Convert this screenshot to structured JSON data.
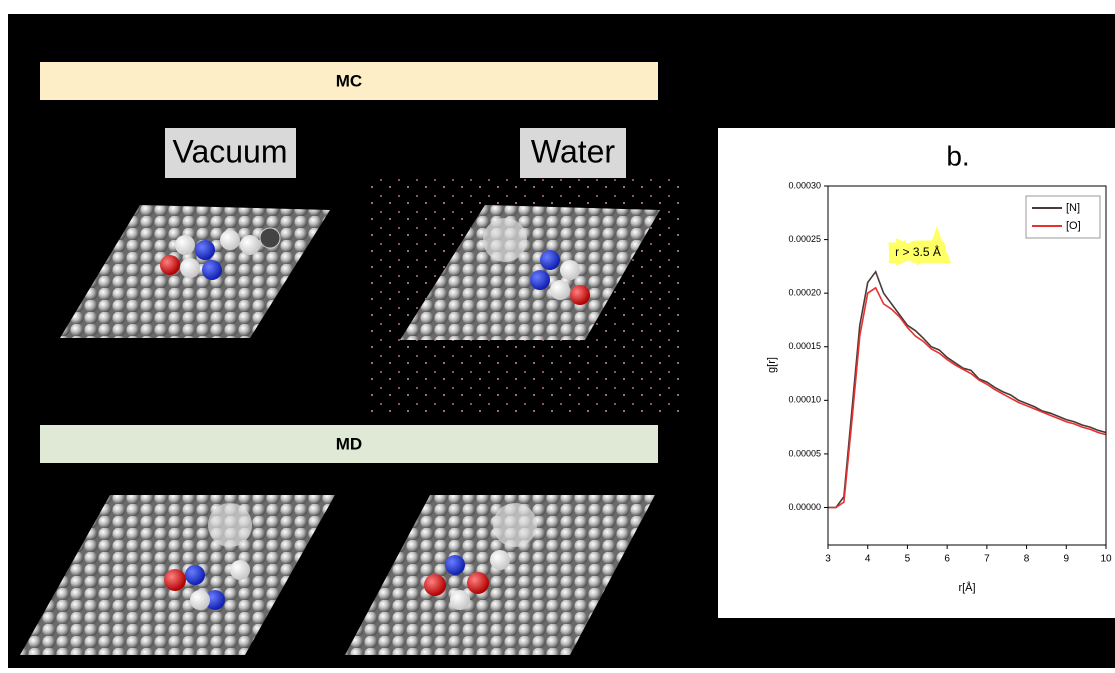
{
  "panels": {
    "mc_label": "MC",
    "md_label": "MD",
    "vacuum_label": "Vacuum",
    "water_label": "Water"
  },
  "chart_data": {
    "type": "line",
    "title": "b.",
    "xlabel": "r[Å]",
    "ylabel": "g[r]",
    "annotation": "r > 3.5 Å",
    "x": [
      3.0,
      3.2,
      3.4,
      3.6,
      3.8,
      4.0,
      4.2,
      4.4,
      4.6,
      4.8,
      5.0,
      5.2,
      5.4,
      5.6,
      5.8,
      6.0,
      6.2,
      6.4,
      6.6,
      6.8,
      7.0,
      7.2,
      7.4,
      7.6,
      7.8,
      8.0,
      8.2,
      8.4,
      8.6,
      8.8,
      9.0,
      9.2,
      9.4,
      9.6,
      9.8,
      10.0
    ],
    "series": [
      {
        "name": "[N]",
        "color": "#4a3a3a",
        "values": [
          0,
          0,
          1e-05,
          9e-05,
          0.00017,
          0.00021,
          0.00022,
          0.0002,
          0.00019,
          0.00018,
          0.00017,
          0.000165,
          0.000158,
          0.00015,
          0.000147,
          0.00014,
          0.000135,
          0.00013,
          0.000128,
          0.00012,
          0.000117,
          0.000112,
          0.000108,
          0.000105,
          0.0001,
          9.7e-05,
          9.4e-05,
          9e-05,
          8.8e-05,
          8.5e-05,
          8.2e-05,
          8e-05,
          7.7e-05,
          7.5e-05,
          7.2e-05,
          7e-05
        ]
      },
      {
        "name": "[O]",
        "color": "#e8312f",
        "values": [
          0,
          0,
          5e-06,
          8e-05,
          0.00016,
          0.0002,
          0.000205,
          0.00019,
          0.000185,
          0.000178,
          0.000168,
          0.00016,
          0.000155,
          0.000148,
          0.000144,
          0.000138,
          0.000133,
          0.000129,
          0.000125,
          0.000119,
          0.000115,
          0.00011,
          0.000106,
          0.000102,
          9.8e-05,
          9.5e-05,
          9.2e-05,
          8.9e-05,
          8.6e-05,
          8.3e-05,
          8e-05,
          7.8e-05,
          7.5e-05,
          7.3e-05,
          7e-05,
          6.8e-05
        ]
      }
    ],
    "xlim": [
      3,
      10
    ],
    "ylim": [
      -3.5e-05,
      0.0003
    ],
    "xticks": [
      3,
      4,
      5,
      6,
      7,
      8,
      9,
      10
    ],
    "yticks": [
      {
        "value": 0,
        "label": "0.00000"
      },
      {
        "value": 5e-05,
        "label": "0.00005"
      },
      {
        "value": 0.0001,
        "label": "0.00010"
      },
      {
        "value": 0.00015,
        "label": "0.00015"
      },
      {
        "value": 0.0002,
        "label": "0.00020"
      },
      {
        "value": 0.00025,
        "label": "0.00025"
      },
      {
        "value": 0.0003,
        "label": "0.00030"
      }
    ],
    "legend": "upper right"
  }
}
